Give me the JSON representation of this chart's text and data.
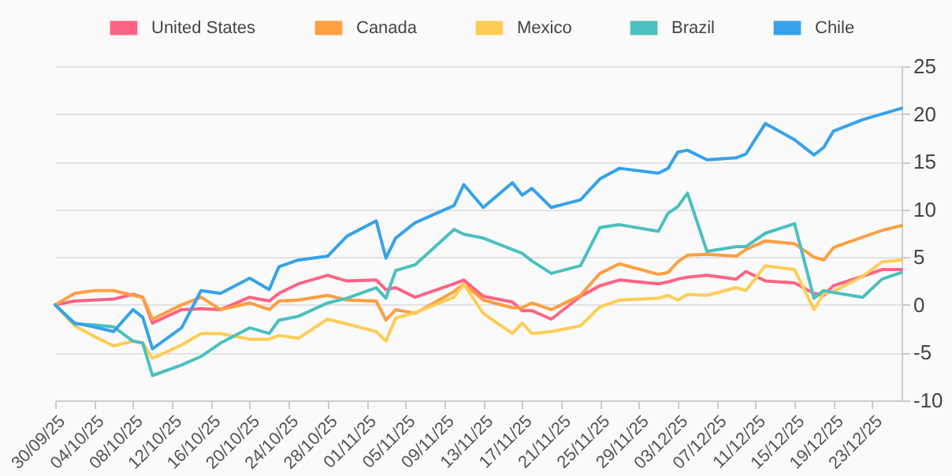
{
  "chart_data": {
    "type": "line",
    "x": [
      "--09-30",
      "--10-02",
      "--10-04",
      "--10-06",
      "--10-08",
      "--10-09",
      "--10-10",
      "--10-13",
      "--10-15",
      "--10-17",
      "--10-20",
      "--10-22",
      "--10-23",
      "--10-25",
      "--10-28",
      "--10-30",
      "--11-02",
      "--11-03",
      "--11-04",
      "--11-06",
      "--11-10",
      "--11-11",
      "--11-13",
      "--11-16",
      "--11-17",
      "--11-18",
      "--11-20",
      "--11-23",
      "--11-25",
      "--11-27",
      "--12-01",
      "--12-02",
      "--12-03",
      "--12-04",
      "--12-06",
      "--12-09",
      "--12-10",
      "--12-12",
      "--12-15",
      "--12-17",
      "--12-18",
      "--12-19",
      "--12-22",
      "--12-24",
      "--12-26"
    ],
    "series": [
      {
        "name": "United States",
        "color": "#ff6384",
        "values": [
          0,
          0.4,
          0.5,
          0.6,
          1.1,
          0.8,
          -1.9,
          -0.5,
          -0.4,
          -0.5,
          0.8,
          0.4,
          1.2,
          2.2,
          3.1,
          2.5,
          2.6,
          1.6,
          1.8,
          0.8,
          2.2,
          2.6,
          0.9,
          0.3,
          -0.6,
          -0.6,
          -1.5,
          0.9,
          2.0,
          2.6,
          2.2,
          2.4,
          2.7,
          2.9,
          3.1,
          2.7,
          3.5,
          2.5,
          2.3,
          1.2,
          1.0,
          2.0,
          3.0,
          3.7,
          3.7
        ]
      },
      {
        "name": "Canada",
        "color": "#ff9f40",
        "values": [
          0,
          1.2,
          1.5,
          1.5,
          1.0,
          0.8,
          -1.5,
          0,
          0.8,
          -0.5,
          0.2,
          -0.5,
          0.4,
          0.5,
          1.0,
          0.5,
          0.4,
          -1.6,
          -0.5,
          -0.9,
          1.4,
          2.2,
          0.5,
          -0.3,
          -0.3,
          0.2,
          -0.5,
          1.0,
          3.3,
          4.3,
          3.2,
          3.4,
          4.5,
          5.2,
          5.3,
          5.1,
          5.8,
          6.7,
          6.4,
          5.0,
          4.7,
          6.0,
          7.1,
          7.8,
          8.3
        ]
      },
      {
        "name": "Mexico",
        "color": "#ffcd56",
        "values": [
          0,
          -2.2,
          -3.3,
          -4.3,
          -3.8,
          -4.0,
          -5.6,
          -4.2,
          -3.0,
          -3.0,
          -3.6,
          -3.6,
          -3.2,
          -3.5,
          -1.5,
          -2.0,
          -2.8,
          -3.8,
          -1.4,
          -0.8,
          0.8,
          2.2,
          -0.9,
          -3.0,
          -1.9,
          -3.0,
          -2.8,
          -2.2,
          -0.2,
          0.5,
          0.7,
          1.0,
          0.5,
          1.1,
          1.0,
          1.8,
          1.5,
          4.1,
          3.7,
          -0.5,
          1.2,
          1.4,
          3.0,
          4.5,
          4.7
        ]
      },
      {
        "name": "Brazil",
        "color": "#4bc0c0",
        "values": [
          0,
          -2.0,
          -2.1,
          -2.3,
          -3.8,
          -4.0,
          -7.4,
          -6.3,
          -5.4,
          -4.0,
          -2.4,
          -3.0,
          -1.6,
          -1.2,
          0.2,
          0.7,
          1.8,
          0.7,
          3.6,
          4.2,
          7.9,
          7.4,
          7.0,
          5.8,
          5.4,
          4.6,
          3.3,
          4.1,
          8.1,
          8.4,
          7.7,
          9.6,
          10.3,
          11.7,
          5.6,
          6.1,
          6.1,
          7.5,
          8.5,
          0.7,
          1.5,
          1.3,
          0.8,
          2.7,
          3.4
        ]
      },
      {
        "name": "Chile",
        "color": "#36a2eb",
        "values": [
          0,
          -1.9,
          -2.3,
          -2.8,
          -0.5,
          -1.3,
          -4.6,
          -2.4,
          1.5,
          1.2,
          2.8,
          1.6,
          4.0,
          4.7,
          5.1,
          7.2,
          8.8,
          4.9,
          7.0,
          8.6,
          10.4,
          12.6,
          10.2,
          12.8,
          11.5,
          12.2,
          10.2,
          11.0,
          13.2,
          14.3,
          13.8,
          14.3,
          16.0,
          16.2,
          15.2,
          15.4,
          15.8,
          19.0,
          17.3,
          15.7,
          16.5,
          18.2,
          19.4,
          20.0,
          20.6
        ]
      }
    ],
    "xlim": [
      "--09-30",
      "--12-26"
    ],
    "xticks": [
      {
        "value": "--09-30",
        "label": "30/09/25"
      },
      {
        "value": "--10-04",
        "label": "04/10/25"
      },
      {
        "value": "--10-08",
        "label": "08/10/25"
      },
      {
        "value": "--10-12",
        "label": "12/10/25"
      },
      {
        "value": "--10-16",
        "label": "16/10/25"
      },
      {
        "value": "--10-20",
        "label": "20/10/25"
      },
      {
        "value": "--10-24",
        "label": "24/10/25"
      },
      {
        "value": "--10-28",
        "label": "28/10/25"
      },
      {
        "value": "--11-01",
        "label": "01/11/25"
      },
      {
        "value": "--11-05",
        "label": "05/11/25"
      },
      {
        "value": "--11-09",
        "label": "09/11/25"
      },
      {
        "value": "--11-13",
        "label": "13/11/25"
      },
      {
        "value": "--11-17",
        "label": "17/11/25"
      },
      {
        "value": "--11-21",
        "label": "21/11/25"
      },
      {
        "value": "--11-25",
        "label": "25/11/25"
      },
      {
        "value": "--11-29",
        "label": "29/11/25"
      },
      {
        "value": "--12-03",
        "label": "03/12/25"
      },
      {
        "value": "--12-07",
        "label": "07/12/25"
      },
      {
        "value": "--12-11",
        "label": "11/12/25"
      },
      {
        "value": "--12-15",
        "label": "15/12/25"
      },
      {
        "value": "--12-19",
        "label": "19/12/25"
      },
      {
        "value": "--12-23",
        "label": "23/12/25"
      }
    ],
    "ylim": [
      -10,
      25
    ],
    "yticks": [
      -10,
      -5,
      0,
      5,
      10,
      15,
      20,
      25
    ],
    "grid": "y",
    "legend": "top",
    "marker": "none",
    "line_style": "solid"
  }
}
